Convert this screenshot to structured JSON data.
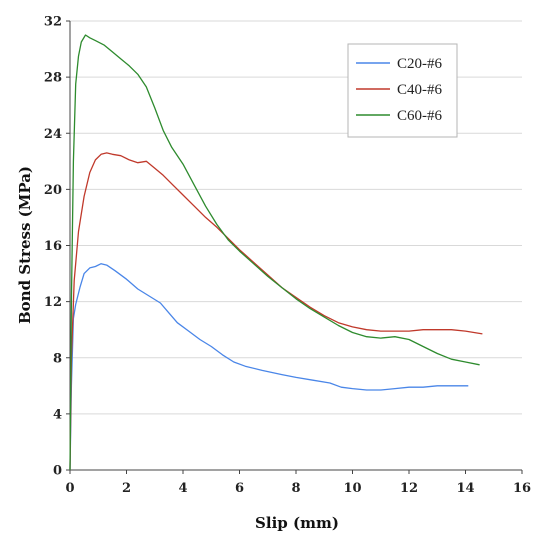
{
  "chart_data": {
    "type": "line",
    "xlabel": "Slip (mm)",
    "ylabel": "Bond Stress (MPa)",
    "xlim": [
      0,
      16
    ],
    "ylim": [
      0,
      32
    ],
    "xticks": [
      "0",
      "2",
      "4",
      "6",
      "8",
      "10",
      "12",
      "14",
      "16"
    ],
    "yticks": [
      "0",
      "4",
      "8",
      "12",
      "16",
      "20",
      "24",
      "28",
      "32"
    ],
    "grid": "horizontal",
    "legend_position": "top-right",
    "series": [
      {
        "name": "C20-#6",
        "color": "#4a86e8",
        "points": [
          [
            0,
            0
          ],
          [
            0.05,
            6
          ],
          [
            0.12,
            10.8
          ],
          [
            0.2,
            11.8
          ],
          [
            0.35,
            13
          ],
          [
            0.5,
            14
          ],
          [
            0.7,
            14.4
          ],
          [
            0.9,
            14.5
          ],
          [
            1.1,
            14.7
          ],
          [
            1.3,
            14.6
          ],
          [
            1.6,
            14.2
          ],
          [
            2,
            13.6
          ],
          [
            2.4,
            12.9
          ],
          [
            2.8,
            12.4
          ],
          [
            3.2,
            11.9
          ],
          [
            3.5,
            11.2
          ],
          [
            3.8,
            10.5
          ],
          [
            4.2,
            9.9
          ],
          [
            4.6,
            9.3
          ],
          [
            5,
            8.8
          ],
          [
            5.4,
            8.2
          ],
          [
            5.8,
            7.7
          ],
          [
            6.2,
            7.4
          ],
          [
            6.8,
            7.1
          ],
          [
            7.5,
            6.8
          ],
          [
            8,
            6.6
          ],
          [
            8.6,
            6.4
          ],
          [
            9.2,
            6.2
          ],
          [
            9.6,
            5.9
          ],
          [
            10,
            5.8
          ],
          [
            10.5,
            5.7
          ],
          [
            11,
            5.7
          ],
          [
            11.5,
            5.8
          ],
          [
            12,
            5.9
          ],
          [
            12.5,
            5.9
          ],
          [
            13,
            6
          ],
          [
            13.5,
            6
          ],
          [
            14.1,
            6
          ]
        ]
      },
      {
        "name": "C40-#6",
        "color": "#c0392b",
        "points": [
          [
            0,
            0
          ],
          [
            0.05,
            8
          ],
          [
            0.15,
            13.5
          ],
          [
            0.3,
            17
          ],
          [
            0.5,
            19.5
          ],
          [
            0.7,
            21.2
          ],
          [
            0.9,
            22.1
          ],
          [
            1.1,
            22.5
          ],
          [
            1.3,
            22.6
          ],
          [
            1.5,
            22.5
          ],
          [
            1.8,
            22.4
          ],
          [
            2.1,
            22.1
          ],
          [
            2.4,
            21.9
          ],
          [
            2.7,
            22
          ],
          [
            3,
            21.5
          ],
          [
            3.3,
            21
          ],
          [
            3.6,
            20.4
          ],
          [
            4,
            19.6
          ],
          [
            4.4,
            18.8
          ],
          [
            4.8,
            18
          ],
          [
            5.2,
            17.3
          ],
          [
            5.6,
            16.5
          ],
          [
            6,
            15.7
          ],
          [
            6.5,
            14.8
          ],
          [
            7,
            13.9
          ],
          [
            7.5,
            13
          ],
          [
            8,
            12.3
          ],
          [
            8.5,
            11.6
          ],
          [
            9,
            11
          ],
          [
            9.5,
            10.5
          ],
          [
            10,
            10.2
          ],
          [
            10.5,
            10
          ],
          [
            11,
            9.9
          ],
          [
            11.5,
            9.9
          ],
          [
            12,
            9.9
          ],
          [
            12.5,
            10
          ],
          [
            13,
            10
          ],
          [
            13.5,
            10
          ],
          [
            14,
            9.9
          ],
          [
            14.6,
            9.7
          ]
        ]
      },
      {
        "name": "C60-#6",
        "color": "#2e8b2e",
        "points": [
          [
            0,
            0
          ],
          [
            0.05,
            12
          ],
          [
            0.12,
            22
          ],
          [
            0.2,
            27.5
          ],
          [
            0.3,
            29.5
          ],
          [
            0.4,
            30.5
          ],
          [
            0.55,
            31
          ],
          [
            0.7,
            30.8
          ],
          [
            0.9,
            30.6
          ],
          [
            1.2,
            30.3
          ],
          [
            1.5,
            29.8
          ],
          [
            1.8,
            29.3
          ],
          [
            2.1,
            28.8
          ],
          [
            2.4,
            28.2
          ],
          [
            2.7,
            27.3
          ],
          [
            3,
            25.8
          ],
          [
            3.3,
            24.2
          ],
          [
            3.6,
            23
          ],
          [
            4,
            21.8
          ],
          [
            4.4,
            20.3
          ],
          [
            4.8,
            18.8
          ],
          [
            5.2,
            17.5
          ],
          [
            5.6,
            16.4
          ],
          [
            6,
            15.6
          ],
          [
            6.5,
            14.7
          ],
          [
            7,
            13.8
          ],
          [
            7.5,
            13
          ],
          [
            8,
            12.2
          ],
          [
            8.5,
            11.5
          ],
          [
            9,
            10.9
          ],
          [
            9.5,
            10.3
          ],
          [
            10,
            9.8
          ],
          [
            10.5,
            9.5
          ],
          [
            11,
            9.4
          ],
          [
            11.5,
            9.5
          ],
          [
            12,
            9.3
          ],
          [
            12.5,
            8.8
          ],
          [
            13,
            8.3
          ],
          [
            13.5,
            7.9
          ],
          [
            14,
            7.7
          ],
          [
            14.5,
            7.5
          ]
        ]
      }
    ]
  }
}
